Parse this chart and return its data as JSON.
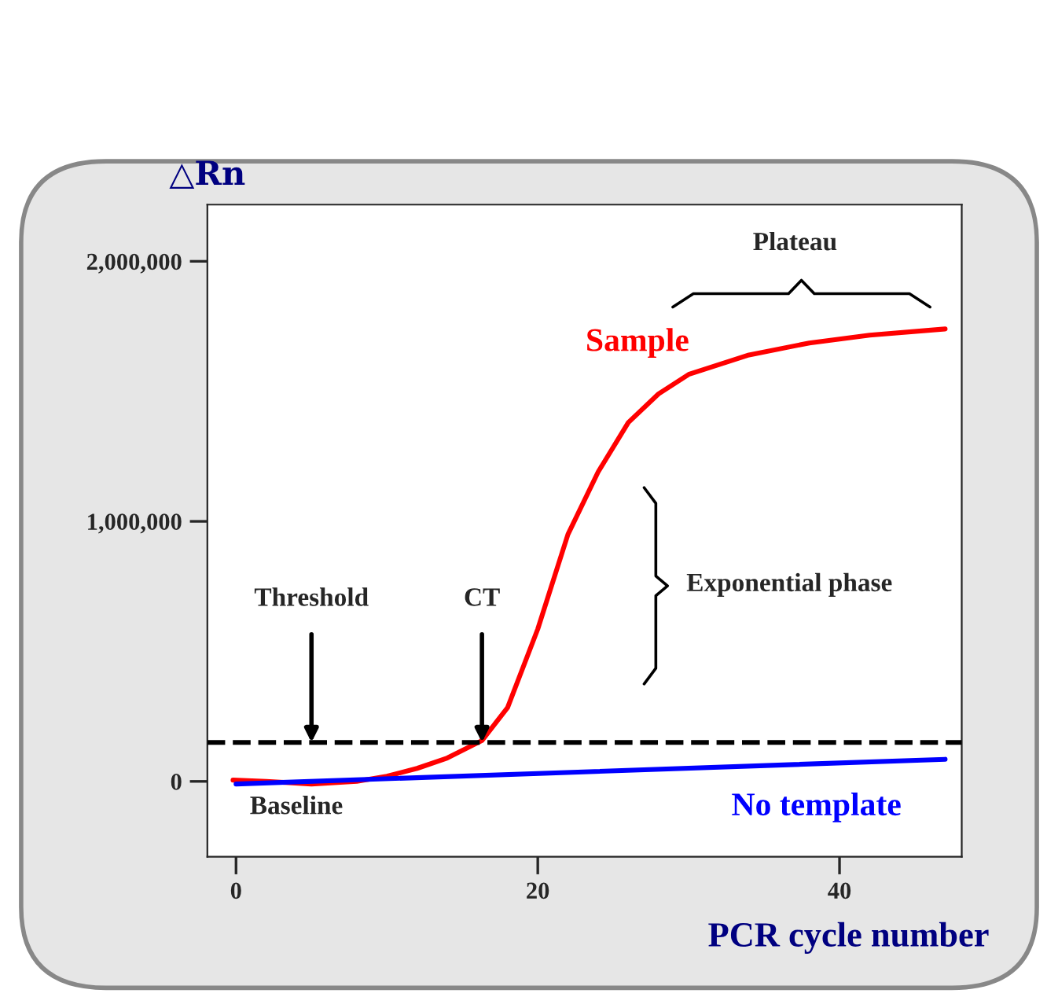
{
  "chart_data": {
    "type": "line",
    "xlabel": "PCR cycle number",
    "ylabel": "△Rn",
    "xlim": [
      -1.9,
      48.1
    ],
    "ylim": [
      -290000,
      2218000
    ],
    "xticks": [
      0,
      20,
      40
    ],
    "yticks": [
      {
        "value": 0,
        "label": "0"
      },
      {
        "value": 1000000,
        "label": "1,000,000"
      },
      {
        "value": 2000000,
        "label": "2,000,000"
      }
    ],
    "series": [
      {
        "name": "Sample",
        "color": "#ff0000",
        "x": [
          -0.2,
          2,
          5,
          8,
          10,
          12,
          14,
          16.3,
          18,
          20,
          22,
          24,
          26,
          28,
          30,
          34,
          38,
          42,
          47
        ],
        "values": [
          5000,
          0,
          -10000,
          0,
          20000,
          50000,
          90000,
          157000,
          284000,
          586000,
          950000,
          1190000,
          1380000,
          1490000,
          1565000,
          1640000,
          1686000,
          1716000,
          1740000
        ]
      },
      {
        "name": "No template",
        "color": "#0000ff",
        "x": [
          0,
          47
        ],
        "values": [
          -10000,
          85000
        ]
      }
    ],
    "ref_lines": [
      {
        "axis": "y",
        "value": 150000,
        "color": "#000000",
        "line_style": "dashed"
      }
    ],
    "annotations": [
      {
        "text": "Threshold",
        "x": 5,
        "y": 150000
      },
      {
        "text": "CT",
        "x": 16.3,
        "y": 150000
      },
      {
        "text": "Baseline",
        "x": 4,
        "y": 0
      },
      "Exponential phase",
      "Plateau"
    ],
    "grid": false,
    "legend": false,
    "marker": "none",
    "line_style": "solid"
  }
}
